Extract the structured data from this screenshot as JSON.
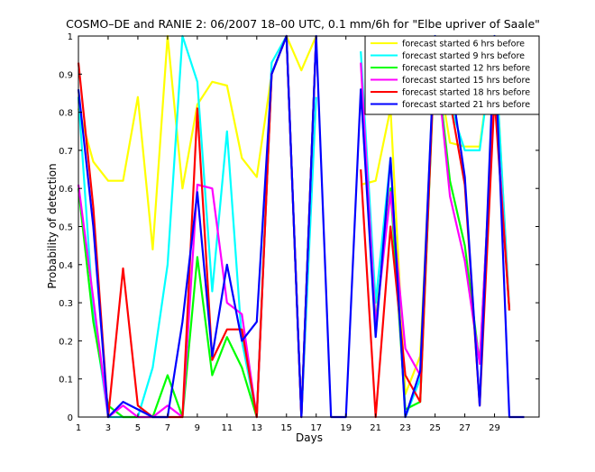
{
  "chart_data": {
    "type": "line",
    "title": "COSMO–DE and RANIE 2: 06/2007 18–00 UTC, 0.1 mm/6h for \"Elbe upriver of Saale\"",
    "xlabel": "Days",
    "ylabel": "Probability of detection",
    "xlim": [
      1,
      32
    ],
    "ylim": [
      0,
      1
    ],
    "xticks": [
      "1",
      "3",
      "5",
      "7",
      "9",
      "11",
      "13",
      "15",
      "17",
      "19",
      "21",
      "23",
      "25",
      "27",
      "29"
    ],
    "yticks": [
      "0",
      "0.1",
      "0.2",
      "0.3",
      "0.4",
      "0.5",
      "0.6",
      "0.7",
      "0.8",
      "0.9",
      "1"
    ],
    "grid": false,
    "legend_position": "top-right",
    "series": [
      {
        "name": "forecast started 6 hrs before",
        "color": "#ffff00",
        "values": [
          0.81,
          0.67,
          0.62,
          0.62,
          0.84,
          0.44,
          1.0,
          0.6,
          0.82,
          0.88,
          0.87,
          0.68,
          0.63,
          0.9,
          1.0,
          0.91,
          1.0,
          null,
          null,
          0.61,
          0.62,
          0.81,
          0.06,
          0.16,
          0.96,
          0.72,
          0.71,
          0.71,
          1.0,
          0.28
        ]
      },
      {
        "name": "forecast started 9 hrs before",
        "color": "#00ffff",
        "values": [
          0.84,
          0.27,
          0.0,
          0.0,
          0.0,
          0.13,
          0.4,
          1.0,
          0.88,
          0.33,
          0.75,
          0.2,
          0.0,
          0.93,
          1.0,
          0.0,
          0.84,
          null,
          null,
          0.96,
          0.3,
          0.68,
          0.0,
          0.1,
          1.0,
          0.82,
          0.7,
          0.7,
          1.0,
          0.28
        ]
      },
      {
        "name": "forecast started 12 hrs before",
        "color": "#00ff00",
        "values": [
          0.6,
          0.25,
          0.03,
          0.0,
          0.0,
          0.0,
          0.11,
          0.0,
          0.42,
          0.11,
          0.21,
          0.13,
          0.0,
          0.9,
          1.0,
          0.0,
          1.0,
          null,
          null,
          0.86,
          0.25,
          0.6,
          0.02,
          0.04,
          0.97,
          0.62,
          0.45,
          0.14,
          0.87,
          0.28
        ]
      },
      {
        "name": "forecast started 15 hrs before",
        "color": "#ff00ff",
        "values": [
          0.61,
          0.31,
          0.0,
          0.03,
          0.0,
          0.0,
          0.03,
          0.0,
          0.61,
          0.6,
          0.3,
          0.27,
          0.0,
          0.9,
          1.0,
          0.0,
          1.0,
          null,
          null,
          0.93,
          0.24,
          0.59,
          0.18,
          0.11,
          0.97,
          0.58,
          0.41,
          0.14,
          0.87,
          0.28
        ]
      },
      {
        "name": "forecast started 18 hrs before",
        "color": "#ff0000",
        "values": [
          0.93,
          0.55,
          0.0,
          0.39,
          0.03,
          0.0,
          0.0,
          0.0,
          0.81,
          0.15,
          0.23,
          0.23,
          0.0,
          0.9,
          1.0,
          0.0,
          1.0,
          null,
          null,
          0.65,
          0.0,
          0.5,
          0.11,
          0.04,
          0.98,
          0.83,
          0.61,
          0.03,
          0.84,
          0.28
        ]
      },
      {
        "name": "forecast started 21 hrs before",
        "color": "#0000ff",
        "values": [
          0.86,
          0.5,
          0.0,
          0.04,
          0.02,
          0.0,
          0.0,
          0.25,
          0.59,
          0.16,
          0.4,
          0.2,
          0.25,
          0.9,
          1.0,
          0.0,
          1.0,
          0.0,
          0.0,
          0.86,
          0.21,
          0.68,
          0.0,
          0.12,
          1.0,
          0.9,
          0.63,
          0.03,
          1.0,
          0.0,
          0.0
        ]
      }
    ]
  }
}
